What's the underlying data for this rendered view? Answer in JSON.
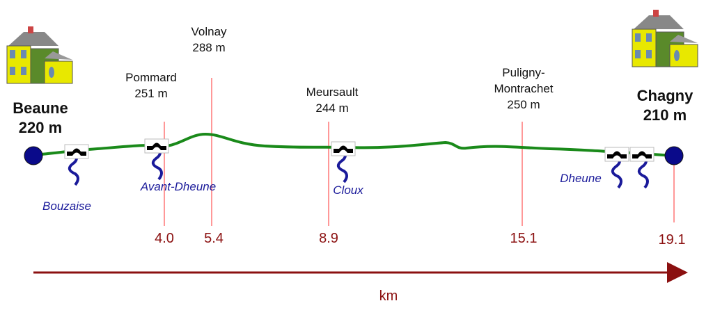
{
  "places": [
    {
      "name": "Beaune",
      "elevation": "220 m",
      "km": null
    },
    {
      "name": "Pommard",
      "elevation": "251 m",
      "km": "4.0"
    },
    {
      "name": "Volnay",
      "elevation": "288 m",
      "km": "5.4"
    },
    {
      "name": "Meursault",
      "elevation": "244 m",
      "km": "8.9"
    },
    {
      "name": "Puligny-",
      "name2": "Montrachet",
      "elevation": "250 m",
      "km": "15.1"
    },
    {
      "name": "Chagny",
      "elevation": "210 m",
      "km": "19.1"
    }
  ],
  "rivers": [
    "Bouzaise",
    "Avant-Dheune",
    "Cloux",
    "Dheune"
  ],
  "axis": {
    "label": "km"
  },
  "colors": {
    "profile": "#1a8a1a",
    "marker": "#c00000",
    "axis": "#8b1010",
    "river": "#1a1a9a",
    "endpoint": "#0a0a8a"
  }
}
